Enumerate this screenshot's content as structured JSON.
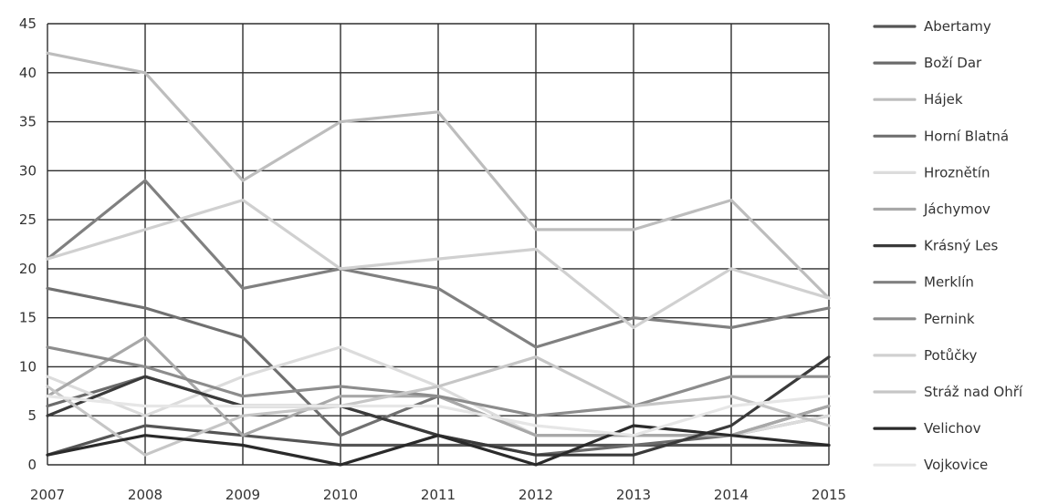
{
  "chart_data": {
    "type": "line",
    "title": "",
    "xlabel": "",
    "ylabel": "",
    "x": [
      "2007",
      "2008",
      "2009",
      "2010",
      "2011",
      "2012",
      "2013",
      "2014",
      "2015"
    ],
    "ylim": [
      0,
      45
    ],
    "yticks": [
      0,
      5,
      10,
      15,
      20,
      25,
      30,
      35,
      40,
      45
    ],
    "grid": true,
    "legend": "right",
    "series": [
      {
        "name": "Abertamy",
        "color": "#555555",
        "values": [
          1,
          4,
          3,
          2,
          2,
          2,
          2,
          2,
          2
        ]
      },
      {
        "name": "Boží Dar",
        "color": "#6b6b6b",
        "values": [
          6,
          9,
          6,
          6,
          3,
          1,
          2,
          3,
          6
        ]
      },
      {
        "name": "Hájek",
        "color": "#bdbdbd",
        "values": [
          42,
          40,
          29,
          35,
          36,
          24,
          24,
          27,
          17
        ]
      },
      {
        "name": "Horní Blatná",
        "color": "#707070",
        "values": [
          18,
          16,
          13,
          3,
          7,
          3,
          3,
          3,
          5
        ]
      },
      {
        "name": "Hroznětín",
        "color": "#dcdcdc",
        "values": [
          9,
          5,
          9,
          12,
          8,
          3,
          3,
          3,
          5
        ]
      },
      {
        "name": "Jáchymov",
        "color": "#a8a8a8",
        "values": [
          7,
          13,
          3,
          7,
          7,
          3,
          3,
          3,
          6
        ]
      },
      {
        "name": "Krásný Les",
        "color": "#3a3a3a",
        "values": [
          5,
          9,
          6,
          6,
          3,
          1,
          1,
          4,
          11
        ]
      },
      {
        "name": "Merklín",
        "color": "#808080",
        "values": [
          21,
          29,
          18,
          20,
          18,
          12,
          15,
          14,
          16
        ]
      },
      {
        "name": "Pernink",
        "color": "#8c8c8c",
        "values": [
          12,
          10,
          7,
          8,
          7,
          5,
          6,
          9,
          9
        ]
      },
      {
        "name": "Potůčky",
        "color": "#d0d0d0",
        "values": [
          21,
          24,
          27,
          20,
          21,
          22,
          14,
          20,
          17
        ]
      },
      {
        "name": "Stráž nad Ohří",
        "color": "#c6c6c6",
        "values": [
          8,
          1,
          5,
          6,
          8,
          11,
          6,
          7,
          4
        ]
      },
      {
        "name": "Velichov",
        "color": "#2a2a2a",
        "values": [
          1,
          3,
          2,
          0,
          3,
          0,
          4,
          3,
          2
        ]
      },
      {
        "name": "Vojkovice",
        "color": "#e6e6e6",
        "values": [
          7,
          6,
          6,
          6,
          6,
          4,
          3,
          6,
          7
        ]
      }
    ]
  }
}
